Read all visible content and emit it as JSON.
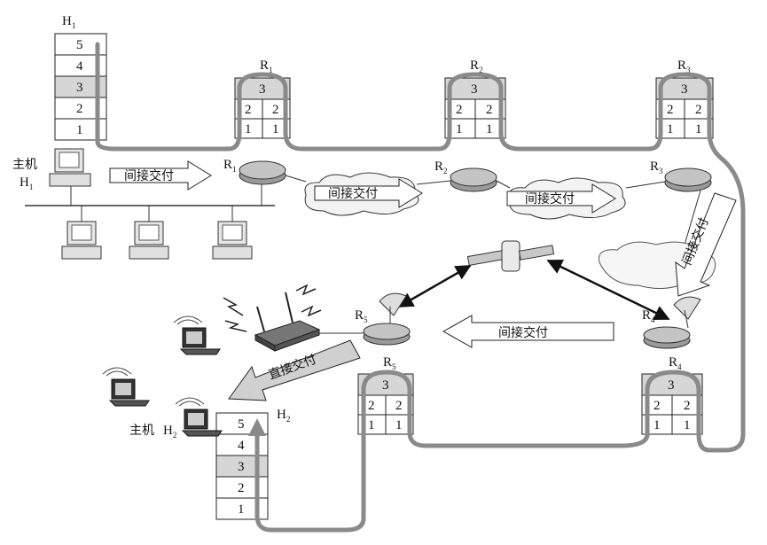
{
  "host1": {
    "label": "H",
    "sub": "1",
    "name": "主机",
    "layers": [
      "5",
      "4",
      "3",
      "2",
      "1"
    ]
  },
  "host2": {
    "label": "H",
    "sub": "2",
    "name": "主机",
    "layers": [
      "5",
      "4",
      "3",
      "2",
      "1"
    ]
  },
  "routers": [
    {
      "id": "r1",
      "label": "R",
      "sub": "1",
      "top": "3",
      "left": "2",
      "right": "2",
      "left1": "1",
      "right1": "1"
    },
    {
      "id": "r2",
      "label": "R",
      "sub": "2",
      "top": "3",
      "left": "2",
      "right": "2",
      "left1": "1",
      "right1": "1"
    },
    {
      "id": "r3",
      "label": "R",
      "sub": "3",
      "top": "3",
      "left": "2",
      "right": "2",
      "left1": "1",
      "right1": "1"
    },
    {
      "id": "r4",
      "label": "R",
      "sub": "4",
      "top": "3",
      "left": "2",
      "right": "2",
      "left1": "1",
      "right1": "1"
    },
    {
      "id": "r5",
      "label": "R",
      "sub": "5",
      "top": "3",
      "left": "2",
      "right": "2",
      "left1": "1",
      "right1": "1"
    }
  ],
  "arrows": {
    "indirect": "间接交付",
    "direct": "直接交付"
  },
  "colors": {
    "path": "#8a8a8a",
    "shade": "#d0d0d0",
    "line": "#222222"
  }
}
